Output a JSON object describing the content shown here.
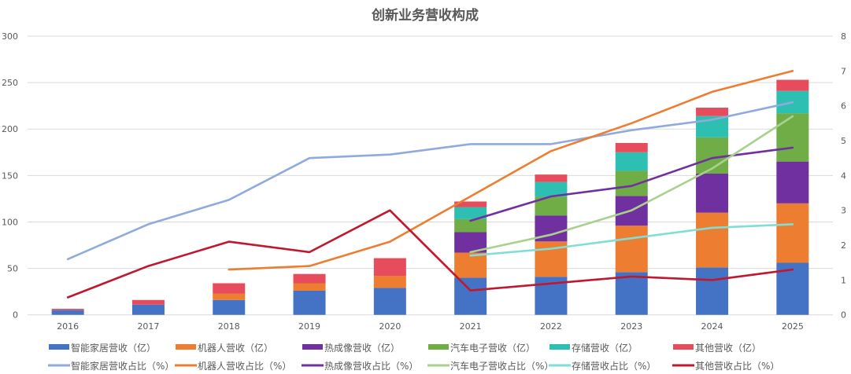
{
  "chart_data": {
    "type": "bar",
    "title": "创新业务营收构成",
    "categories": [
      "2016",
      "2017",
      "2018",
      "2019",
      "2020",
      "2021",
      "2022",
      "2023",
      "2024",
      "2025"
    ],
    "y_left": {
      "ylim": [
        0,
        300
      ],
      "ticks": [
        "0",
        "50",
        "100",
        "150",
        "200",
        "250",
        "300"
      ],
      "tick_values": [
        0,
        50,
        100,
        150,
        200,
        250,
        300
      ]
    },
    "y_right": {
      "ylim": [
        0,
        8
      ],
      "ticks": [
        "0",
        "1",
        "2",
        "3",
        "4",
        "5",
        "6",
        "7",
        "8"
      ],
      "tick_values": [
        0,
        1,
        2,
        3,
        4,
        5,
        6,
        7,
        8
      ]
    },
    "grid": true,
    "legend_position": "bottom",
    "bar_series": [
      {
        "name": "智能家居营收（亿）",
        "color": "#4472C4",
        "values": [
          5,
          11,
          16,
          26,
          29,
          40,
          41,
          46,
          51,
          56
        ]
      },
      {
        "name": "机器人营收（亿）",
        "color": "#ED7D31",
        "values": [
          0,
          0,
          7,
          8,
          13,
          27,
          38,
          50,
          59,
          64
        ]
      },
      {
        "name": "热成像营收（亿）",
        "color": "#7030A0",
        "values": [
          0,
          0,
          0,
          0,
          0,
          22,
          28,
          32,
          42,
          45
        ]
      },
      {
        "name": "汽车电子营收（亿）",
        "color": "#70AD47",
        "values": [
          0,
          0,
          0,
          0,
          0,
          14,
          20,
          27,
          39,
          52
        ]
      },
      {
        "name": "存储营收（亿）",
        "color": "#2EBFB3",
        "values": [
          0,
          0,
          0,
          0,
          0,
          13,
          16,
          20,
          23,
          24
        ]
      },
      {
        "name": "其他营收（亿）",
        "color": "#E64C5C",
        "values": [
          1.5,
          5,
          11,
          10,
          19,
          6,
          8,
          10,
          9,
          12
        ]
      }
    ],
    "line_series": [
      {
        "name": "智能家居营收占比（%）",
        "color": "#8FAADC",
        "values": [
          1.6,
          2.6,
          3.3,
          4.5,
          4.6,
          4.9,
          4.9,
          5.3,
          5.6,
          6.1
        ]
      },
      {
        "name": "机器人营收占比（%）",
        "color": "#ED7D31",
        "values": [
          null,
          null,
          1.3,
          1.4,
          2.1,
          3.4,
          4.7,
          5.5,
          6.4,
          7.0
        ]
      },
      {
        "name": "热成像营收占比（%）",
        "color": "#7030A0",
        "values": [
          null,
          null,
          null,
          null,
          null,
          2.7,
          3.4,
          3.7,
          4.5,
          4.8
        ]
      },
      {
        "name": "汽车电子营收占比（%）",
        "color": "#A9D18E",
        "values": [
          null,
          null,
          null,
          null,
          null,
          1.8,
          2.3,
          3.0,
          4.2,
          5.7
        ]
      },
      {
        "name": "存储营收占比（%）",
        "color": "#7FDED5",
        "values": [
          null,
          null,
          null,
          null,
          null,
          1.7,
          1.9,
          2.2,
          2.5,
          2.6
        ]
      },
      {
        "name": "其他营收占比（%）",
        "color": "#C0182E",
        "values": [
          0.5,
          1.4,
          2.1,
          1.8,
          3.0,
          0.7,
          0.9,
          1.1,
          1.0,
          1.3
        ]
      }
    ]
  }
}
